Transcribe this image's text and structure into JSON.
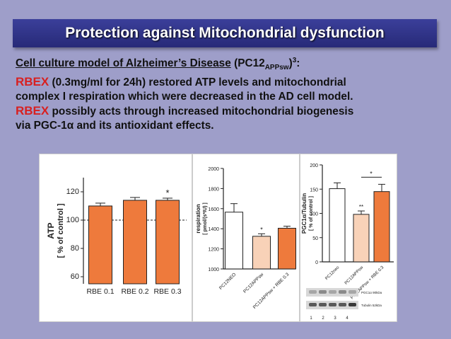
{
  "title": "Protection against Mitochondrial dysfunction",
  "text": {
    "line1_main": "Cell culture model of Alzheimer’s Disease",
    "line1_pc": "(PC12",
    "line1_sub": "APPsw",
    "line1_close": ")",
    "line1_sup": "3",
    "line1_colon": ":",
    "rbex1": "RBEX",
    "line2_rest": " (0.3mg/ml for 24h) restored ATP levels and mitochondrial",
    "line3": "complex I respiration which were decreased in the AD cell model.",
    "rbex2": "RBEX",
    "line4_rest": " possibly acts through increased mitochondrial biogenesis",
    "line5": "via PGC-1α  and its antioxidant effects."
  },
  "colors": {
    "orange": "#ee7a3c",
    "light_orange": "#f8d2b8",
    "title_bg": "#2f338a",
    "red": "#d82020"
  },
  "chart_data": [
    {
      "type": "bar",
      "ylabel": "ATP",
      "ylabel2": "[ % of control ]",
      "categories": [
        "RBE 0.1",
        "RBE 0.2",
        "RBE 0.3"
      ],
      "values": [
        110,
        114,
        114
      ],
      "errors": [
        2,
        2,
        1.5
      ],
      "annotations": [
        "",
        "",
        "*"
      ],
      "yticks": [
        "60",
        "80",
        "100",
        "120"
      ],
      "ylim": [
        55,
        130
      ],
      "reference_line": 100
    },
    {
      "type": "bar",
      "ylabel": "respiration",
      "ylabel2": "[ pmol/(s*IU) ]",
      "categories": [
        "PC12NEO",
        "PC12APPsw",
        "PC12APPsw + RBE 0.3"
      ],
      "values": [
        1565,
        1325,
        1405
      ],
      "errors": [
        85,
        25,
        20
      ],
      "annotations": [
        "",
        "*",
        ""
      ],
      "yticks": [
        "1000",
        "1200",
        "1400",
        "1600",
        "1800",
        "2000"
      ],
      "ylim": [
        1000,
        2000
      ]
    },
    {
      "type": "bar",
      "ylabel": "PGC1α/Tubulin",
      "ylabel2": "[ % of control ]",
      "categories": [
        "PC12neo",
        "PC12APPsw",
        "PC12APPsw + RBE 0.3"
      ],
      "values": [
        151,
        98,
        145
      ],
      "errors": [
        12,
        7,
        15
      ],
      "annotations": [
        "",
        "**",
        ""
      ],
      "bracket_label": "*",
      "yticks": [
        "0",
        "50",
        "100",
        "150",
        "200"
      ],
      "ylim": [
        0,
        200
      ],
      "blot_labels": [
        "PGC1α 90kDa",
        "Tubulin 52kDa"
      ],
      "lane_labels": [
        "1",
        "2",
        "3",
        "4"
      ]
    }
  ]
}
